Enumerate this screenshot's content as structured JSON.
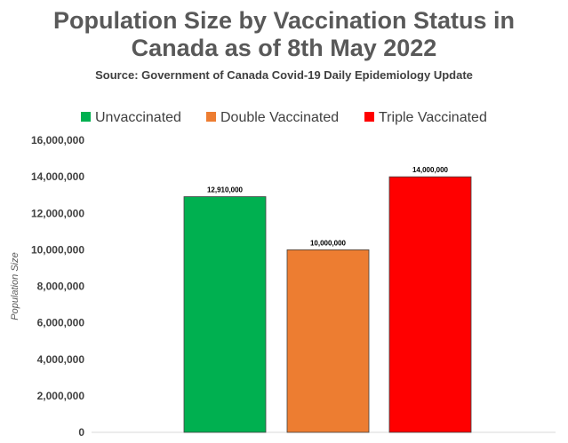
{
  "title_lines": [
    "Population Size by Vaccination Status in",
    "Canada as of 8th May 2022"
  ],
  "subtitle": "Source: Government of Canada Covid-19 Daily Epidemiology Update",
  "chart_data": {
    "type": "bar",
    "categories": [
      "Unvaccinated",
      "Double Vaccinated",
      "Triple Vaccinated"
    ],
    "values": [
      12910000,
      10000000,
      14000000
    ],
    "value_labels": [
      "12,910,000",
      "10,000,000",
      "14,000,000"
    ],
    "colors": [
      "#00b050",
      "#ed7d31",
      "#ff0000"
    ],
    "ylabel": "Population Size",
    "ylim": [
      0,
      16000000
    ],
    "yticks": [
      0,
      2000000,
      4000000,
      6000000,
      8000000,
      10000000,
      12000000,
      14000000,
      16000000
    ],
    "ytick_labels": [
      "0",
      "2,000,000",
      "4,000,000",
      "6,000,000",
      "8,000,000",
      "10,000,000",
      "12,000,000",
      "14,000,000",
      "16,000,000"
    ],
    "grid": false,
    "legend_position": "top"
  }
}
